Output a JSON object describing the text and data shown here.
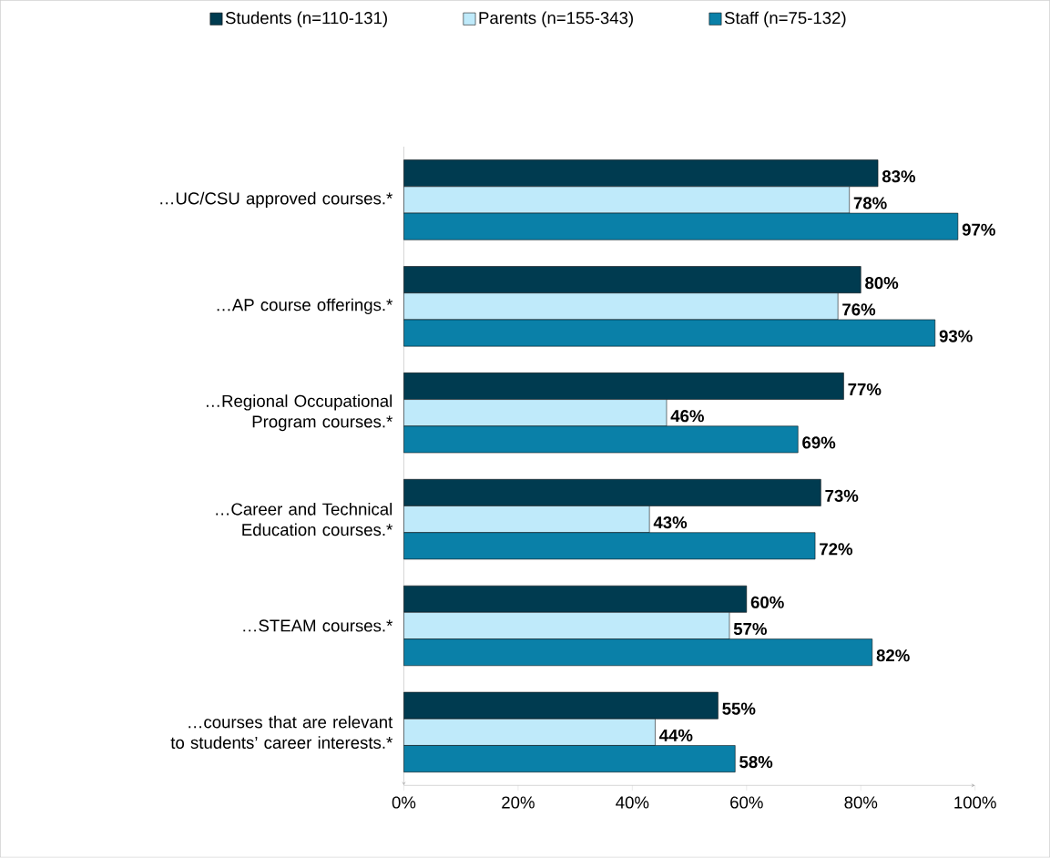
{
  "chart_data": {
    "type": "bar",
    "orientation": "horizontal",
    "legend": "top",
    "grid": false,
    "categories": [
      "…UC/CSU approved courses.*",
      "…AP course offerings.*",
      "…Regional Occupational Program courses.*",
      "…Career and Technical Education courses.*",
      "…STEAM courses.*",
      "…courses that are relevant to students’ career interests.*"
    ],
    "series": [
      {
        "name": "Students (n=110-131)",
        "color": "#003b50",
        "values": [
          83,
          80,
          77,
          73,
          60,
          55
        ],
        "value_labels": [
          "83%",
          "80%",
          "77%",
          "73%",
          "60%",
          "55%"
        ]
      },
      {
        "name": "Parents (n=155-343)",
        "color": "#bfeafa",
        "values": [
          78,
          76,
          46,
          43,
          57,
          44
        ],
        "value_labels": [
          "78%",
          "76%",
          "46%",
          "43%",
          "57%",
          "44%"
        ]
      },
      {
        "name": "Staff (n=75-132)",
        "color": "#0a80a8",
        "values": [
          97,
          93,
          69,
          72,
          82,
          58
        ],
        "value_labels": [
          "97%",
          "93%",
          "69%",
          "72%",
          "82%",
          "58%"
        ]
      }
    ],
    "xlim": [
      0,
      100
    ],
    "xticks": [
      {
        "value": 0,
        "label": "0%"
      },
      {
        "value": 20,
        "label": "20%"
      },
      {
        "value": 40,
        "label": "40%"
      },
      {
        "value": 60,
        "label": "60%"
      },
      {
        "value": 80,
        "label": "80%"
      },
      {
        "value": 100,
        "label": "100%"
      }
    ]
  }
}
